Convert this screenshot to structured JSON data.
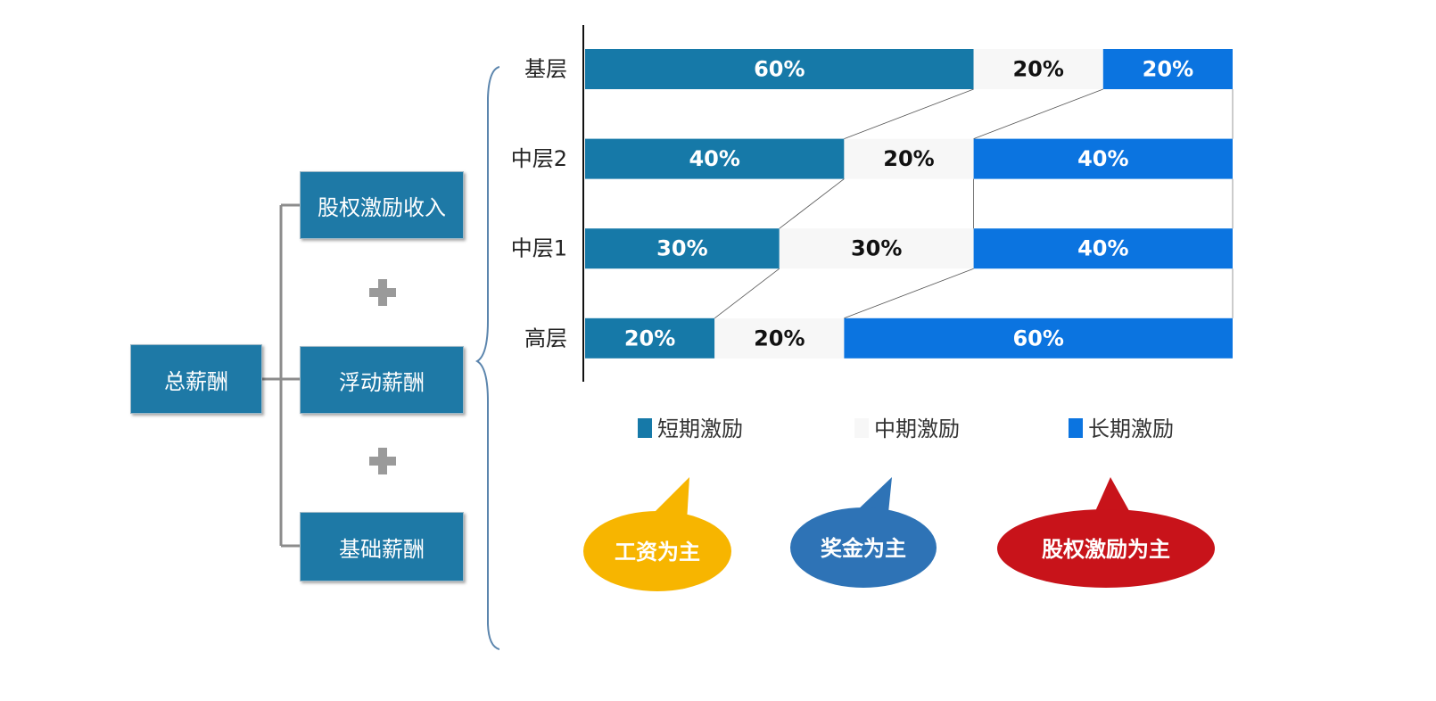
{
  "tree": {
    "root": "总薪酬",
    "children": [
      "股权激励收入",
      "浮动薪酬",
      "基础薪酬"
    ]
  },
  "chart_data": {
    "type": "bar",
    "orientation": "horizontal",
    "stacked": true,
    "categories": [
      "基层",
      "中层2",
      "中层1",
      "高层"
    ],
    "series": [
      {
        "name": "短期激励",
        "values": [
          60,
          40,
          30,
          20
        ],
        "color": "#1679a8",
        "label_color": "#ffffff"
      },
      {
        "name": "中期激励",
        "values": [
          20,
          20,
          30,
          20
        ],
        "color": "#f7f7f7",
        "label_color": "#111111"
      },
      {
        "name": "长期激励",
        "values": [
          20,
          40,
          40,
          60
        ],
        "color": "#0b74e0",
        "label_color": "#ffffff"
      }
    ],
    "value_suffix": "%",
    "xlim": [
      0,
      100
    ],
    "legend_position": "bottom",
    "grid": false
  },
  "callouts": [
    {
      "text": "工资为主",
      "color": "#f7b500"
    },
    {
      "text": "奖金为主",
      "color": "#2e73b6"
    },
    {
      "text": "股权激励为主",
      "color": "#c8131a"
    }
  ],
  "colors": {
    "box_fill": "#1e79a6",
    "connector": "#8c8c8c",
    "brace": "#5b85ad"
  }
}
